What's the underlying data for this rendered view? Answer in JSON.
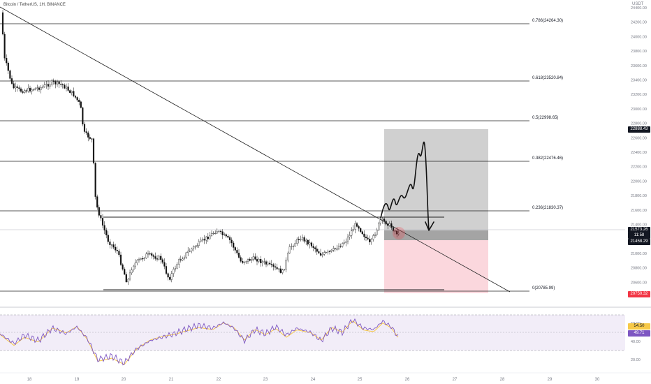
{
  "header": {
    "symbol_title": "Bitcoin / TetherUS, 1H, BINANCE",
    "currency": "USDT"
  },
  "price_axis": {
    "ticks": [
      "24400.00",
      "24200.00",
      "24000.00",
      "23800.00",
      "23600.00",
      "23400.00",
      "23200.00",
      "23000.00",
      "22800.00",
      "22600.00",
      "22400.00",
      "22200.00",
      "22000.00",
      "21800.00",
      "21600.00",
      "21400.00",
      "21200.00",
      "21000.00",
      "20800.00",
      "20600.00"
    ],
    "tags": {
      "target": "22888.43",
      "current": "21573.26",
      "countdown": "11:58",
      "entry": "21458.29",
      "stop": "20750.32"
    },
    "colors": {
      "target_bg": "#131722",
      "current_bg": "#131722",
      "entry_bg": "#131722",
      "stop_bg": "#f23645"
    }
  },
  "fibonacci": {
    "levels": [
      "0.786(24264.30)",
      "0.618(23520.84)",
      "0.5(22998.65)",
      "0.382(22476.46)",
      "0.236(21830.37)",
      "0(20785.99)"
    ]
  },
  "time_axis": {
    "labels": [
      "18",
      "19",
      "20",
      "21",
      "22",
      "23",
      "24",
      "25",
      "26",
      "27",
      "28",
      "29",
      "30"
    ]
  },
  "rsi": {
    "ticks": [
      "60.00",
      "40.00",
      "20.00"
    ],
    "value_main": "54.50",
    "value_signal": "49.71",
    "colors": {
      "main": "#7e57c2",
      "signal": "#f7c948",
      "band": "#ede7f6"
    }
  },
  "position": {
    "colors": {
      "profit": "#c8c8c8",
      "loss": "#fbd5db",
      "entry_box": "#9a9a9a"
    }
  }
}
